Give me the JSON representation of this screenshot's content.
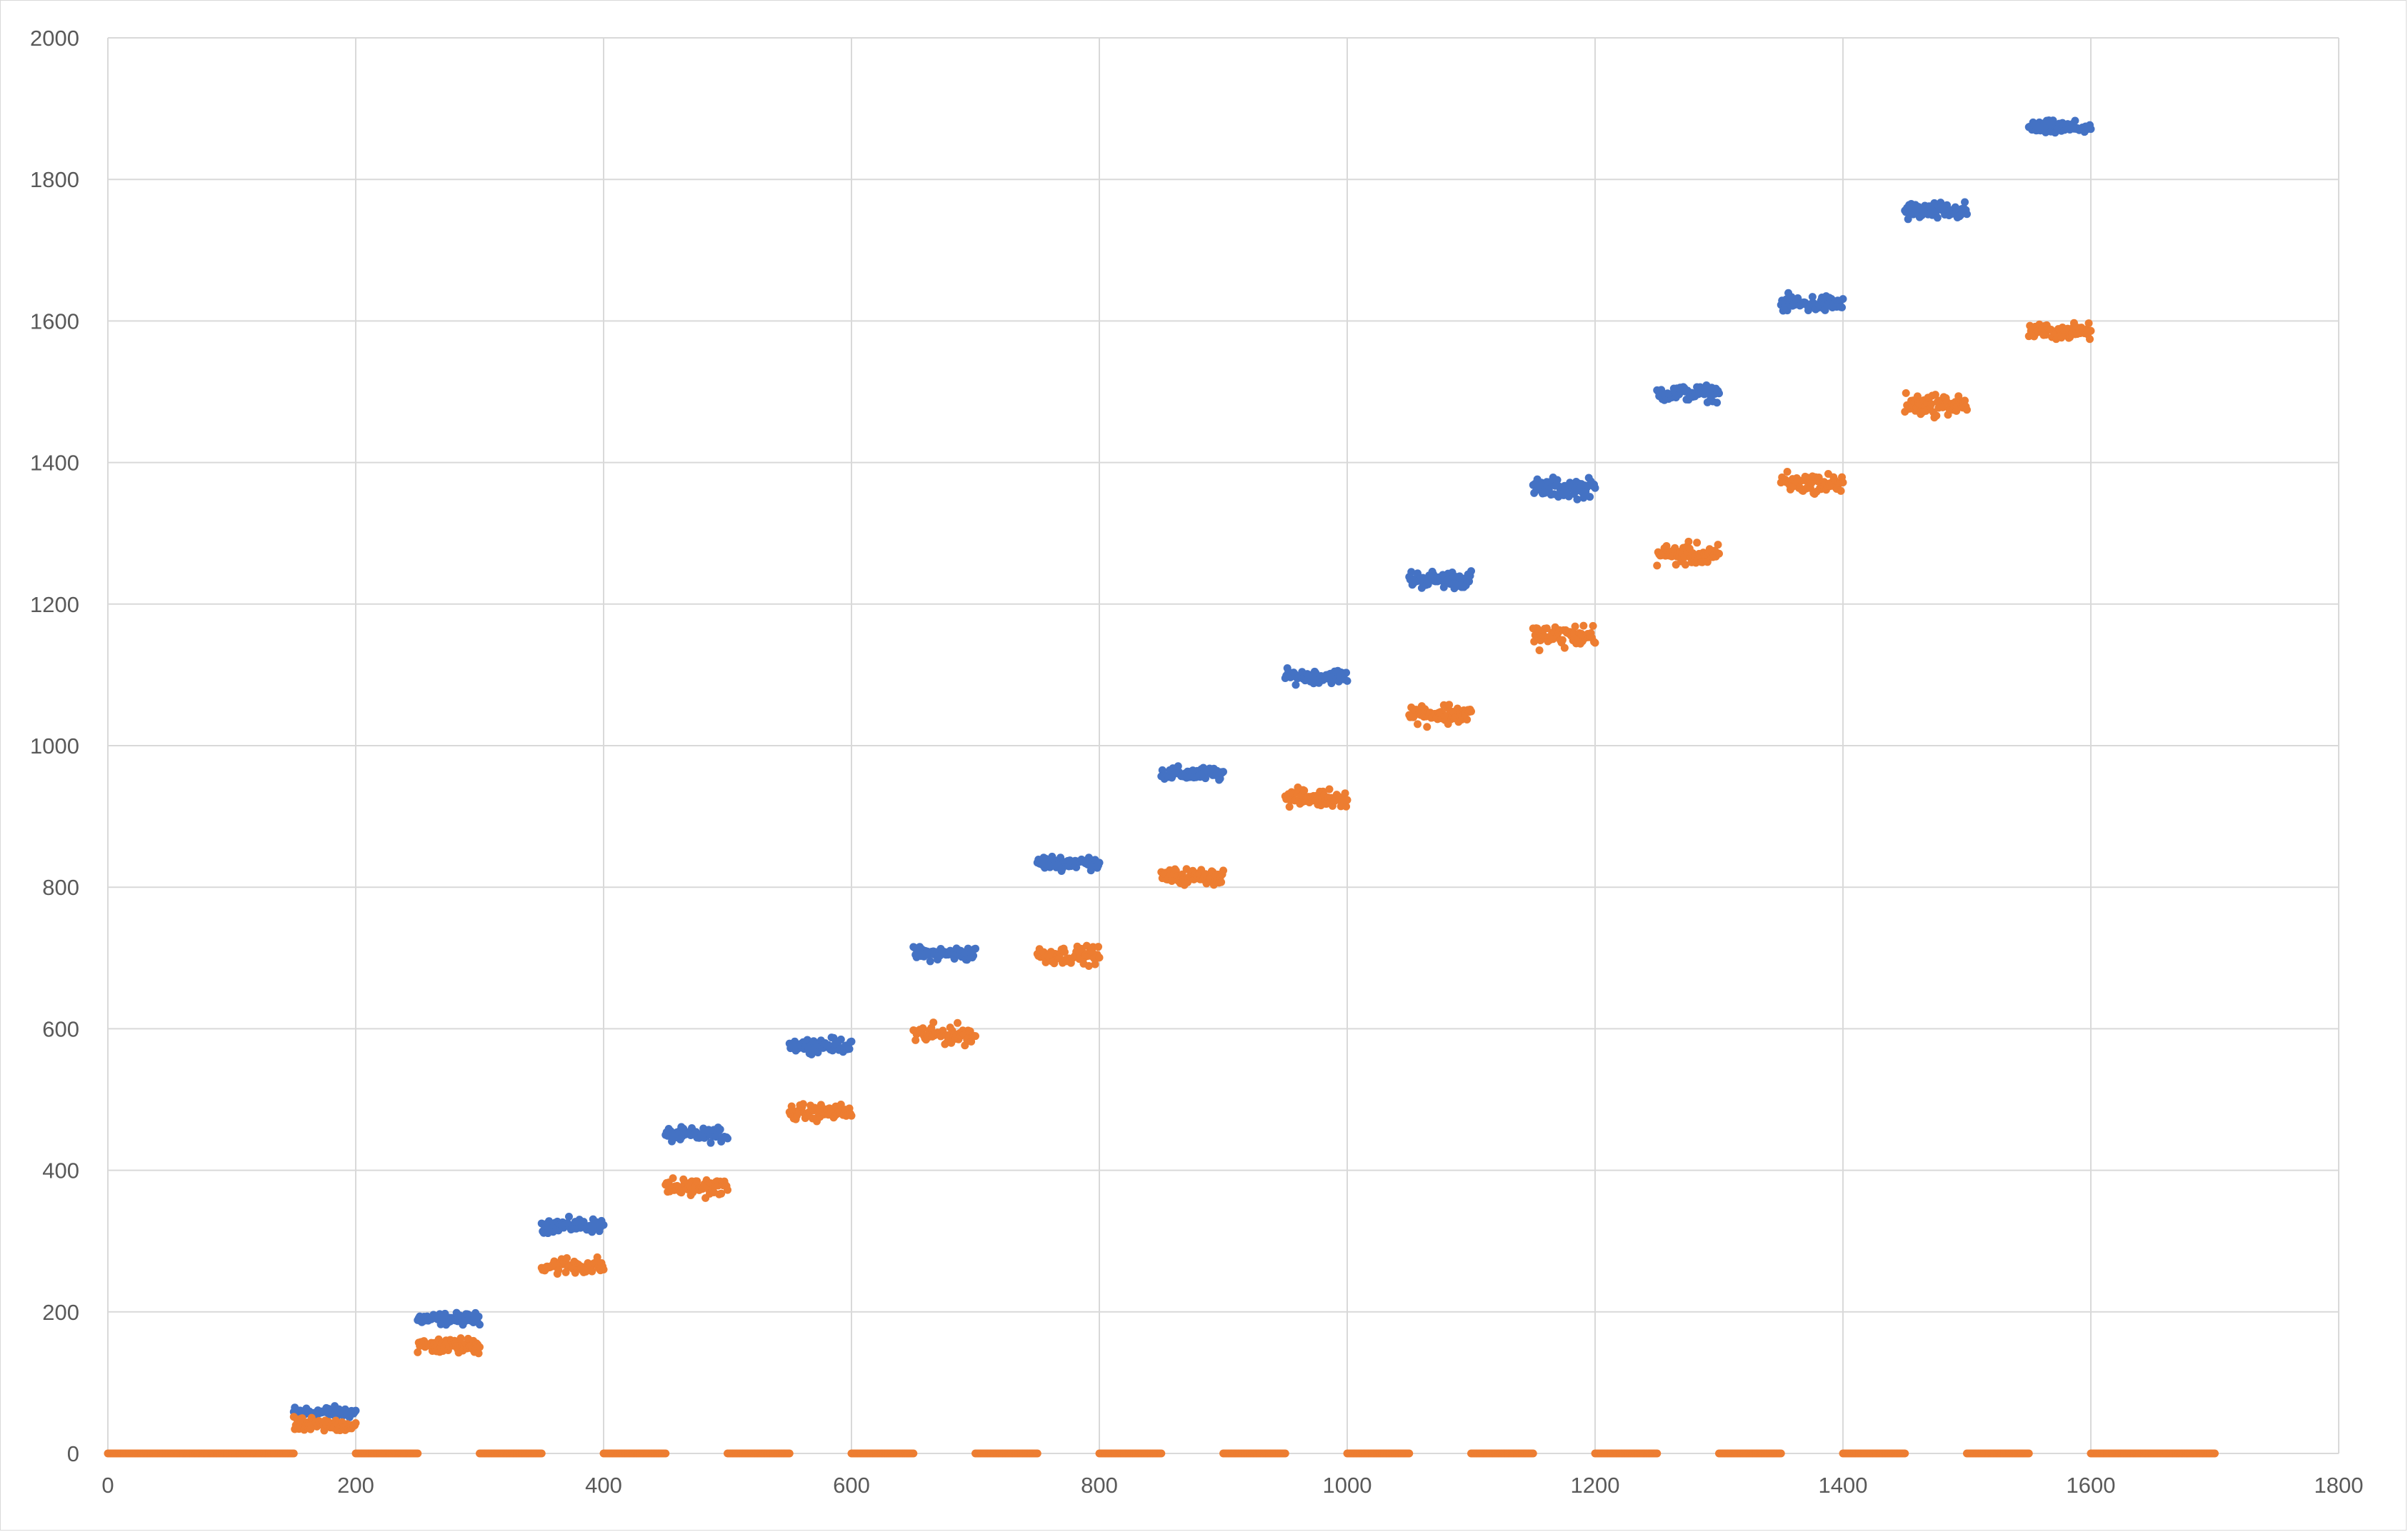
{
  "chart_data": {
    "type": "scatter",
    "title": "",
    "xlabel": "",
    "ylabel": "",
    "xlim": [
      0,
      1800
    ],
    "ylim": [
      0,
      2000
    ],
    "x_ticks": [
      0,
      200,
      400,
      600,
      800,
      1000,
      1200,
      1400,
      1600,
      1800
    ],
    "y_ticks": [
      0,
      200,
      400,
      600,
      800,
      1000,
      1200,
      1400,
      1600,
      1800,
      2000
    ],
    "x_tick_labels": [
      "0",
      "200",
      "400",
      "600",
      "800",
      "1000",
      "1200",
      "1400",
      "1600",
      "1800"
    ],
    "y_tick_labels": [
      "0",
      "200",
      "400",
      "600",
      "800",
      "1000",
      "1200",
      "1400",
      "1600",
      "1800",
      "2000"
    ],
    "grid": true,
    "legend": "none",
    "series_colors": [
      "#4472c4",
      "#ed7d31"
    ],
    "series": [
      {
        "color": "#4472c4",
        "clusters": [
          {
            "x_range": [
              150,
              200
            ],
            "y_center": 58,
            "spread": 12
          },
          {
            "x_range": [
              250,
              300
            ],
            "y_center": 190,
            "spread": 12
          },
          {
            "x_range": [
              350,
              400
            ],
            "y_center": 322,
            "spread": 14
          },
          {
            "x_range": [
              450,
              500
            ],
            "y_center": 450,
            "spread": 14
          },
          {
            "x_range": [
              550,
              600
            ],
            "y_center": 577,
            "spread": 14
          },
          {
            "x_range": [
              650,
              700
            ],
            "y_center": 706,
            "spread": 14
          },
          {
            "x_range": [
              750,
              800
            ],
            "y_center": 835,
            "spread": 14
          },
          {
            "x_range": [
              850,
              900
            ],
            "y_center": 960,
            "spread": 14
          },
          {
            "x_range": [
              950,
              1000
            ],
            "y_center": 1098,
            "spread": 14
          },
          {
            "x_range": [
              1050,
              1100
            ],
            "y_center": 1235,
            "spread": 18
          },
          {
            "x_range": [
              1150,
              1200
            ],
            "y_center": 1364,
            "spread": 20
          },
          {
            "x_range": [
              1250,
              1300
            ],
            "y_center": 1498,
            "spread": 16
          },
          {
            "x_range": [
              1350,
              1400
            ],
            "y_center": 1624,
            "spread": 18
          },
          {
            "x_range": [
              1450,
              1500
            ],
            "y_center": 1755,
            "spread": 18
          },
          {
            "x_range": [
              1550,
              1600
            ],
            "y_center": 1873,
            "spread": 14
          }
        ]
      },
      {
        "color": "#ed7d31",
        "clusters": [
          {
            "x_range": [
              150,
              200
            ],
            "y_center": 40,
            "spread": 14
          },
          {
            "x_range": [
              250,
              300
            ],
            "y_center": 152,
            "spread": 16
          },
          {
            "x_range": [
              350,
              400
            ],
            "y_center": 265,
            "spread": 18
          },
          {
            "x_range": [
              450,
              500
            ],
            "y_center": 376,
            "spread": 18
          },
          {
            "x_range": [
              550,
              600
            ],
            "y_center": 482,
            "spread": 16
          },
          {
            "x_range": [
              650,
              700
            ],
            "y_center": 592,
            "spread": 20
          },
          {
            "x_range": [
              750,
              800
            ],
            "y_center": 704,
            "spread": 18
          },
          {
            "x_range": [
              850,
              900
            ],
            "y_center": 815,
            "spread": 16
          },
          {
            "x_range": [
              950,
              1000
            ],
            "y_center": 926,
            "spread": 18
          },
          {
            "x_range": [
              1050,
              1100
            ],
            "y_center": 1045,
            "spread": 22
          },
          {
            "x_range": [
              1150,
              1200
            ],
            "y_center": 1155,
            "spread": 24
          },
          {
            "x_range": [
              1250,
              1300
            ],
            "y_center": 1270,
            "spread": 22
          },
          {
            "x_range": [
              1350,
              1400
            ],
            "y_center": 1370,
            "spread": 24
          },
          {
            "x_range": [
              1450,
              1500
            ],
            "y_center": 1482,
            "spread": 22
          },
          {
            "x_range": [
              1550,
              1600
            ],
            "y_center": 1585,
            "spread": 16
          }
        ],
        "zero_segments": [
          [
            0,
            150
          ],
          [
            200,
            250
          ],
          [
            300,
            350
          ],
          [
            400,
            450
          ],
          [
            500,
            550
          ],
          [
            600,
            650
          ],
          [
            700,
            750
          ],
          [
            800,
            850
          ],
          [
            900,
            950
          ],
          [
            1000,
            1050
          ],
          [
            1100,
            1150
          ],
          [
            1200,
            1250
          ],
          [
            1300,
            1350
          ],
          [
            1400,
            1450
          ],
          [
            1500,
            1550
          ],
          [
            1600,
            1700
          ]
        ]
      }
    ]
  }
}
